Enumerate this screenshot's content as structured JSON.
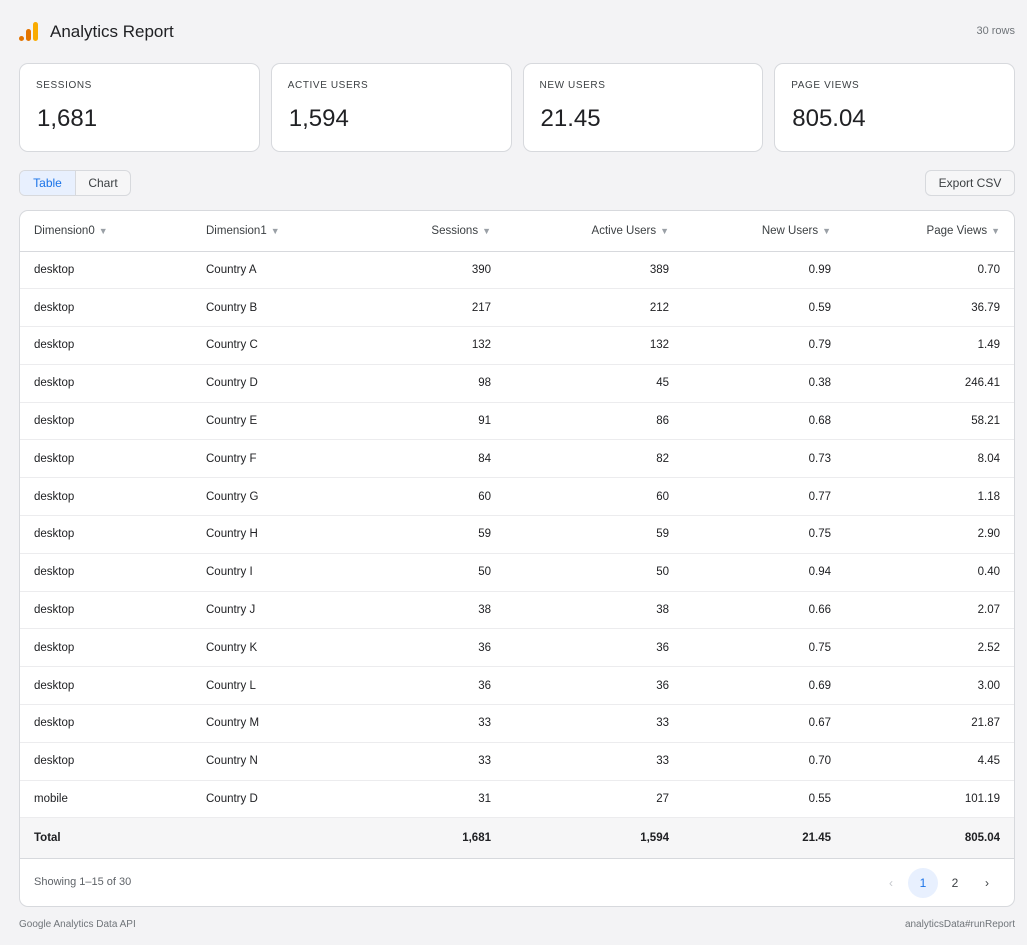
{
  "header": {
    "title": "Analytics Report",
    "row_count": "30 rows"
  },
  "colors": {
    "accent": "#1a73e8",
    "logo_bar_dark": "#e37400",
    "logo_bar_light": "#f9ab00"
  },
  "cards": [
    {
      "label": "SESSIONS",
      "value": "1,681"
    },
    {
      "label": "ACTIVE USERS",
      "value": "1,594"
    },
    {
      "label": "NEW USERS",
      "value": "21.45"
    },
    {
      "label": "PAGE VIEWS",
      "value": "805.04"
    }
  ],
  "view_toggle": {
    "table": "Table",
    "chart": "Chart",
    "selected": "Table"
  },
  "export_label": "Export CSV",
  "table": {
    "columns": [
      "Dimension0",
      "Dimension1",
      "Sessions",
      "Active Users",
      "New Users",
      "Page Views"
    ],
    "sort_icon": "▼",
    "rows": [
      [
        "desktop",
        "Country A",
        "390",
        "389",
        "0.99",
        "0.70"
      ],
      [
        "desktop",
        "Country B",
        "217",
        "212",
        "0.59",
        "36.79"
      ],
      [
        "desktop",
        "Country C",
        "132",
        "132",
        "0.79",
        "1.49"
      ],
      [
        "desktop",
        "Country D",
        "98",
        "45",
        "0.38",
        "246.41"
      ],
      [
        "desktop",
        "Country E",
        "91",
        "86",
        "0.68",
        "58.21"
      ],
      [
        "desktop",
        "Country F",
        "84",
        "82",
        "0.73",
        "8.04"
      ],
      [
        "desktop",
        "Country G",
        "60",
        "60",
        "0.77",
        "1.18"
      ],
      [
        "desktop",
        "Country H",
        "59",
        "59",
        "0.75",
        "2.90"
      ],
      [
        "desktop",
        "Country I",
        "50",
        "50",
        "0.94",
        "0.40"
      ],
      [
        "desktop",
        "Country J",
        "38",
        "38",
        "0.66",
        "2.07"
      ],
      [
        "desktop",
        "Country K",
        "36",
        "36",
        "0.75",
        "2.52"
      ],
      [
        "desktop",
        "Country L",
        "36",
        "36",
        "0.69",
        "3.00"
      ],
      [
        "desktop",
        "Country M",
        "33",
        "33",
        "0.67",
        "21.87"
      ],
      [
        "desktop",
        "Country N",
        "33",
        "33",
        "0.70",
        "4.45"
      ],
      [
        "mobile",
        "Country D",
        "31",
        "27",
        "0.55",
        "101.19"
      ]
    ],
    "total": [
      "Total",
      "",
      "1,681",
      "1,594",
      "21.45",
      "805.04"
    ]
  },
  "pagination": {
    "showing": "Showing 1–15 of 30",
    "prev": "‹",
    "pages": [
      "1",
      "2"
    ],
    "current": "1",
    "next": "›"
  },
  "footer": {
    "left": "Google Analytics Data API",
    "right": "analyticsData#runReport"
  }
}
